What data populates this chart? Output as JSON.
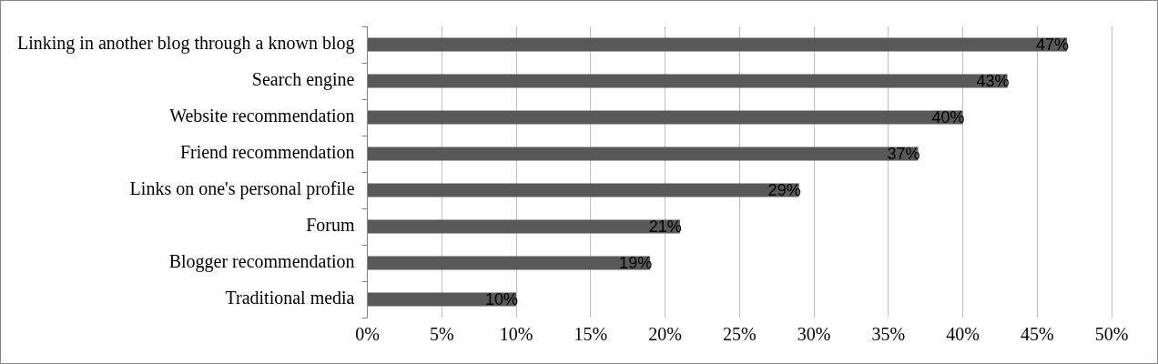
{
  "chart_data": {
    "type": "bar",
    "orientation": "horizontal",
    "categories": [
      "Linking in another blog through a known blog",
      "Search engine",
      "Website recommendation",
      "Friend recommendation",
      "Links on one's personal profile",
      "Forum",
      "Blogger recommendation",
      "Traditional media"
    ],
    "values": [
      47,
      43,
      40,
      37,
      29,
      21,
      19,
      10
    ],
    "value_labels": [
      "47%",
      "43%",
      "40%",
      "37%",
      "29%",
      "21%",
      "19%",
      "10%"
    ],
    "color": "#595959",
    "xlim": [
      0,
      50
    ],
    "xticks": [
      {
        "value": 0,
        "label": "0%"
      },
      {
        "value": 5,
        "label": "5%"
      },
      {
        "value": 10,
        "label": "10%"
      },
      {
        "value": 15,
        "label": "15%"
      },
      {
        "value": 20,
        "label": "20%"
      },
      {
        "value": 25,
        "label": "25%"
      },
      {
        "value": 30,
        "label": "30%"
      },
      {
        "value": 35,
        "label": "35%"
      },
      {
        "value": 40,
        "label": "40%"
      },
      {
        "value": 45,
        "label": "45%"
      },
      {
        "value": 50,
        "label": "50%"
      }
    ],
    "grid": "x"
  }
}
